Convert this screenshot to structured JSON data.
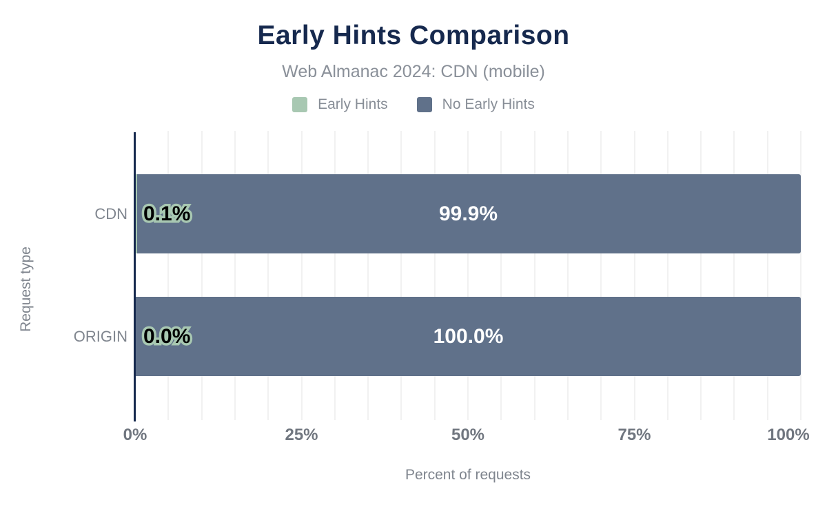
{
  "chart_data": {
    "type": "bar",
    "orientation": "horizontal",
    "stacked": true,
    "title": "Early Hints Comparison",
    "subtitle": "Web Almanac 2024: CDN (mobile)",
    "categories": [
      "CDN",
      "ORIGIN"
    ],
    "series": [
      {
        "name": "Early Hints",
        "color": "#a8c8b2",
        "values": [
          0.1,
          0.0
        ],
        "labels": [
          "0.1%",
          "0.0%"
        ]
      },
      {
        "name": "No Early Hints",
        "color": "#60718a",
        "values": [
          99.9,
          100.0
        ],
        "labels": [
          "99.9%",
          "100.0%"
        ]
      }
    ],
    "xlabel": "Percent of requests",
    "ylabel": "Request type",
    "xlim": [
      0,
      100
    ],
    "xticks": [
      "0%",
      "25%",
      "50%",
      "75%",
      "100%"
    ],
    "grid_step_pct": 5,
    "grid": "vertical light gridlines every 5%",
    "legend_position": "top",
    "colors": {
      "title": "#16294e",
      "axis_line": "#16294e",
      "text_gray": "#878d96",
      "gridline": "#f1f1f1",
      "value_label_on_bar": "#ffffff",
      "value_label_outline": "#a8c8b2"
    }
  }
}
